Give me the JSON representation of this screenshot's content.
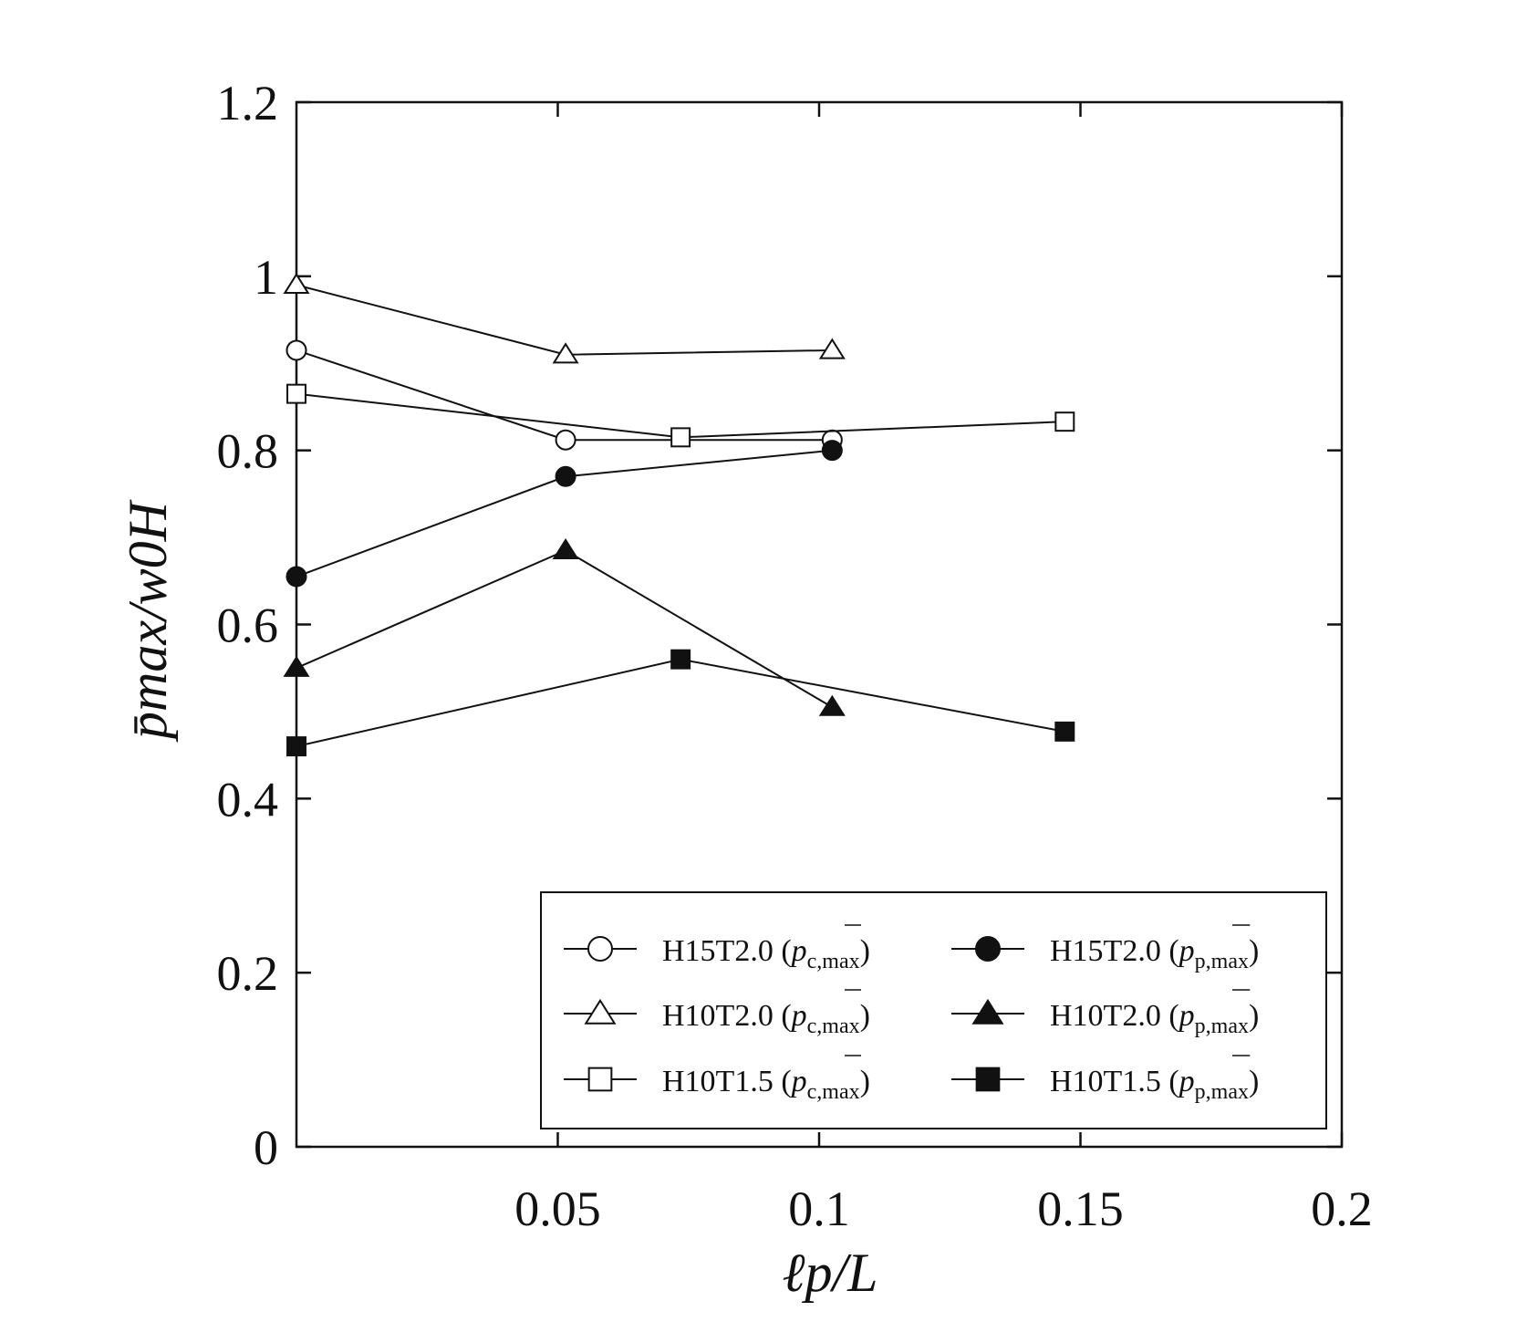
{
  "chart_data": {
    "type": "line",
    "xlabel": "ℓp/L",
    "ylabel": "p̄max/w0H",
    "xlim": [
      0,
      0.2
    ],
    "ylim": [
      0,
      1.2
    ],
    "x_ticks": [
      "0.05",
      "0.1",
      "0.15",
      "0.2"
    ],
    "y_ticks": [
      "0",
      "0.2",
      "0.4",
      "0.6",
      "0.8",
      "1",
      "1.2"
    ],
    "grid": false,
    "legend_position": "bottom-right",
    "series": [
      {
        "name": "H15T2.0",
        "sub": "c,max",
        "marker": "circle",
        "filled": false,
        "x": [
          0,
          0.0515,
          0.1025
        ],
        "y": [
          0.915,
          0.812,
          0.812
        ]
      },
      {
        "name": "H10T2.0",
        "sub": "c,max",
        "marker": "triangle",
        "filled": false,
        "x": [
          0,
          0.0515,
          0.1025
        ],
        "y": [
          0.99,
          0.91,
          0.915
        ]
      },
      {
        "name": "H10T1.5",
        "sub": "c,max",
        "marker": "square",
        "filled": false,
        "x": [
          0,
          0.0735,
          0.147
        ],
        "y": [
          0.865,
          0.815,
          0.833
        ]
      },
      {
        "name": "H15T2.0",
        "sub": "p,max",
        "marker": "circle",
        "filled": true,
        "x": [
          0,
          0.0515,
          0.1025
        ],
        "y": [
          0.655,
          0.77,
          0.8
        ]
      },
      {
        "name": "H10T2.0",
        "sub": "p,max",
        "marker": "triangle",
        "filled": true,
        "x": [
          0,
          0.0515,
          0.1025
        ],
        "y": [
          0.55,
          0.685,
          0.505
        ]
      },
      {
        "name": "H10T1.5",
        "sub": "p,max",
        "marker": "square",
        "filled": true,
        "x": [
          0,
          0.0735,
          0.147
        ],
        "y": [
          0.46,
          0.56,
          0.477
        ]
      }
    ]
  }
}
